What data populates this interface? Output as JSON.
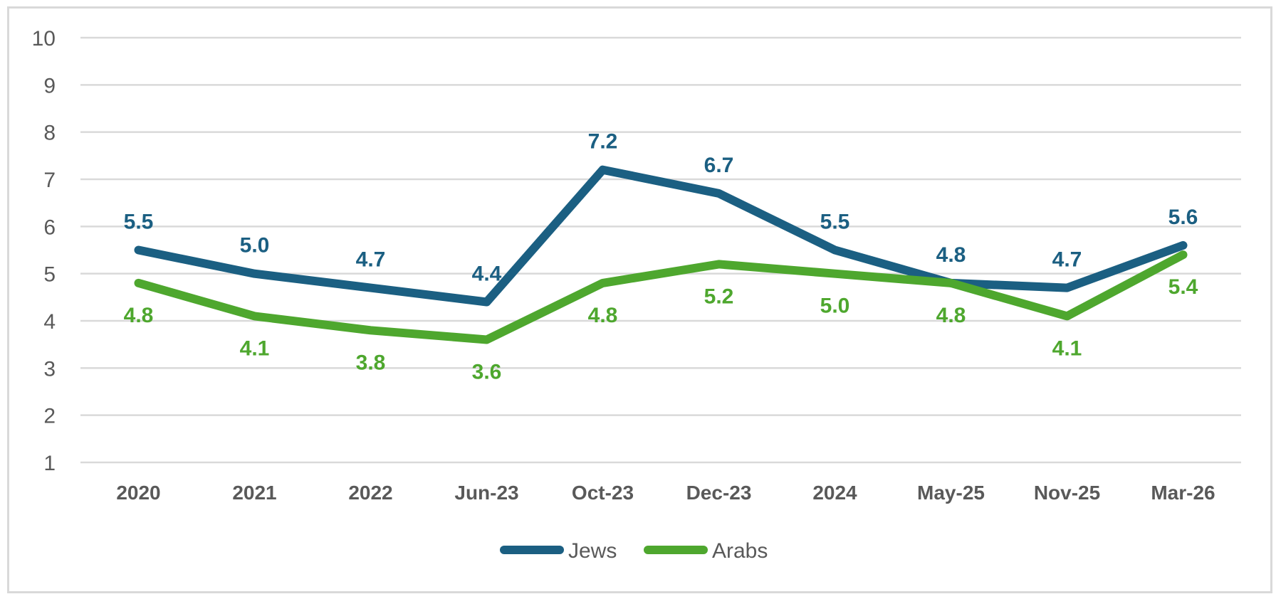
{
  "chart_data": {
    "type": "line",
    "title": "",
    "xlabel": "",
    "ylabel": "",
    "categories": [
      "2020",
      "2021",
      "2022",
      "Jun-23",
      "Oct-23",
      "Dec-23",
      "2024",
      "May-25",
      "Nov-25",
      "Mar-26"
    ],
    "ylim": [
      1,
      10
    ],
    "yticks": [
      "1",
      "2",
      "3",
      "4",
      "5",
      "6",
      "7",
      "8",
      "9",
      "10"
    ],
    "grid": true,
    "legend_position": "bottom-center",
    "series": [
      {
        "name": "Jews",
        "color": "#1b5f82",
        "values": [
          5.5,
          5.0,
          4.7,
          4.4,
          7.2,
          6.7,
          5.5,
          4.8,
          4.7,
          5.6
        ],
        "labels": [
          "5.5",
          "5.0",
          "4.7",
          "4.4",
          "7.2",
          "6.7",
          "5.5",
          "4.8",
          "4.7",
          "5.6"
        ],
        "label_position": "above"
      },
      {
        "name": "Arabs",
        "color": "#4ea72e",
        "values": [
          4.8,
          4.1,
          3.8,
          3.6,
          4.8,
          5.2,
          5.0,
          4.8,
          4.1,
          5.4
        ],
        "labels": [
          "4.8",
          "4.1",
          "3.8",
          "3.6",
          "4.8",
          "5.2",
          "5.0",
          "4.8",
          "4.1",
          "5.4"
        ],
        "label_position": "below"
      }
    ]
  }
}
